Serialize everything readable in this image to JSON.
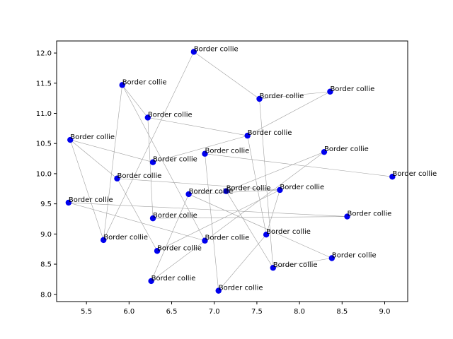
{
  "chart_data": {
    "type": "scatter",
    "title": "",
    "xlabel": "",
    "ylabel": "",
    "xlim": [
      5.15,
      9.27
    ],
    "ylim": [
      7.88,
      12.2
    ],
    "xticks": [
      5.5,
      6.0,
      6.5,
      7.0,
      7.5,
      8.0,
      8.5,
      9.0
    ],
    "xtick_labels": [
      "5.5",
      "6.0",
      "6.5",
      "7.0",
      "7.5",
      "8.0",
      "8.5",
      "9.0"
    ],
    "yticks": [
      8.0,
      8.5,
      9.0,
      9.5,
      10.0,
      10.5,
      11.0,
      11.5,
      12.0
    ],
    "ytick_labels": [
      "8.0",
      "8.5",
      "9.0",
      "9.5",
      "10.0",
      "10.5",
      "11.0",
      "11.5",
      "12.0"
    ],
    "grid": false,
    "marker_color": "#0000ee",
    "line_color": "#a0a0a0",
    "points": [
      {
        "x": 6.76,
        "y": 12.02,
        "label": "Border collie"
      },
      {
        "x": 5.92,
        "y": 11.47,
        "label": "Border collie"
      },
      {
        "x": 8.36,
        "y": 11.36,
        "label": "Border collie"
      },
      {
        "x": 7.53,
        "y": 11.24,
        "label": "Border collie"
      },
      {
        "x": 6.22,
        "y": 10.93,
        "label": "Border collie"
      },
      {
        "x": 7.39,
        "y": 10.63,
        "label": "Border collie"
      },
      {
        "x": 5.31,
        "y": 10.56,
        "label": "Border collie"
      },
      {
        "x": 8.29,
        "y": 10.36,
        "label": "Border collie"
      },
      {
        "x": 6.89,
        "y": 10.33,
        "label": "Border collie"
      },
      {
        "x": 6.28,
        "y": 10.19,
        "label": "Border collie"
      },
      {
        "x": 9.09,
        "y": 9.95,
        "label": "Border collie"
      },
      {
        "x": 5.86,
        "y": 9.92,
        "label": "Border collie"
      },
      {
        "x": 7.77,
        "y": 9.73,
        "label": "Border collie"
      },
      {
        "x": 7.14,
        "y": 9.71,
        "label": "Border collie"
      },
      {
        "x": 6.7,
        "y": 9.66,
        "label": "Border collie"
      },
      {
        "x": 5.29,
        "y": 9.52,
        "label": "Border collie"
      },
      {
        "x": 8.56,
        "y": 9.29,
        "label": "Border collie"
      },
      {
        "x": 6.28,
        "y": 9.26,
        "label": "Border collie"
      },
      {
        "x": 7.61,
        "y": 8.99,
        "label": "Border collie"
      },
      {
        "x": 5.7,
        "y": 8.9,
        "label": "Border collie"
      },
      {
        "x": 6.89,
        "y": 8.89,
        "label": "Border collie"
      },
      {
        "x": 6.33,
        "y": 8.72,
        "label": "Border collie"
      },
      {
        "x": 8.38,
        "y": 8.6,
        "label": "Border collie"
      },
      {
        "x": 7.69,
        "y": 8.44,
        "label": "Border collie"
      },
      {
        "x": 6.26,
        "y": 8.22,
        "label": "Border collie"
      },
      {
        "x": 7.05,
        "y": 8.06,
        "label": "Border collie"
      }
    ],
    "edges": [
      [
        0,
        3
      ],
      [
        0,
        19
      ],
      [
        1,
        4
      ],
      [
        1,
        20
      ],
      [
        2,
        3
      ],
      [
        2,
        5
      ],
      [
        4,
        5
      ],
      [
        4,
        17
      ],
      [
        6,
        9
      ],
      [
        6,
        19
      ],
      [
        6,
        11
      ],
      [
        7,
        13
      ],
      [
        7,
        24
      ],
      [
        8,
        10
      ],
      [
        8,
        25
      ],
      [
        9,
        5
      ],
      [
        11,
        12
      ],
      [
        11,
        21
      ],
      [
        12,
        14
      ],
      [
        13,
        23
      ],
      [
        14,
        22
      ],
      [
        15,
        16
      ],
      [
        15,
        20
      ],
      [
        16,
        17
      ],
      [
        18,
        25
      ],
      [
        18,
        5
      ],
      [
        18,
        12
      ],
      [
        19,
        1
      ],
      [
        21,
        12
      ],
      [
        22,
        23
      ],
      [
        23,
        3
      ],
      [
        24,
        14
      ]
    ]
  }
}
